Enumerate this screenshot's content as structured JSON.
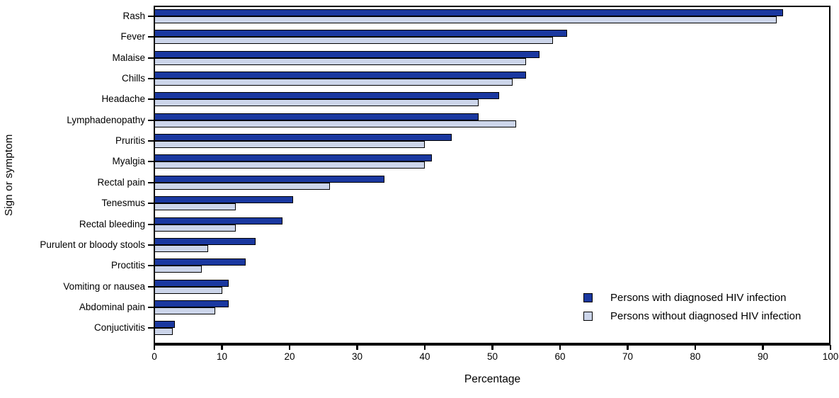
{
  "chart_data": {
    "type": "bar",
    "orientation": "horizontal",
    "title": "",
    "xlabel": "Percentage",
    "ylabel": "Sign or symptom",
    "xlim": [
      0,
      100
    ],
    "x_ticks": [
      0,
      10,
      20,
      30,
      40,
      50,
      60,
      70,
      80,
      90,
      100
    ],
    "grid": false,
    "frame": true,
    "legend_position": "lower right",
    "categories": [
      "Rash",
      "Fever",
      "Malaise",
      "Chills",
      "Headache",
      "Lymphadenopathy",
      "Pruritis",
      "Myalgia",
      "Rectal pain",
      "Tenesmus",
      "Rectal bleeding",
      "Purulent or bloody stools",
      "Proctitis",
      "Vomiting or nausea",
      "Abdominal pain",
      "Conjuctivitis"
    ],
    "series": [
      {
        "name": "Persons with diagnosed HIV infection",
        "color": "#1a38a0",
        "values": [
          93,
          61,
          57,
          55,
          51,
          48,
          44,
          41,
          34,
          20.5,
          19,
          15,
          13.5,
          11,
          11,
          3
        ]
      },
      {
        "name": "Persons without diagnosed HIV infection",
        "color": "#ccd5ea",
        "values": [
          92,
          59,
          55,
          53,
          48,
          53.5,
          40,
          40,
          26,
          12,
          12,
          8,
          7,
          10,
          9,
          2.7
        ]
      }
    ]
  },
  "colors": {
    "axis": "#000000",
    "background": "#ffffff",
    "bar_outline": "#000000"
  }
}
